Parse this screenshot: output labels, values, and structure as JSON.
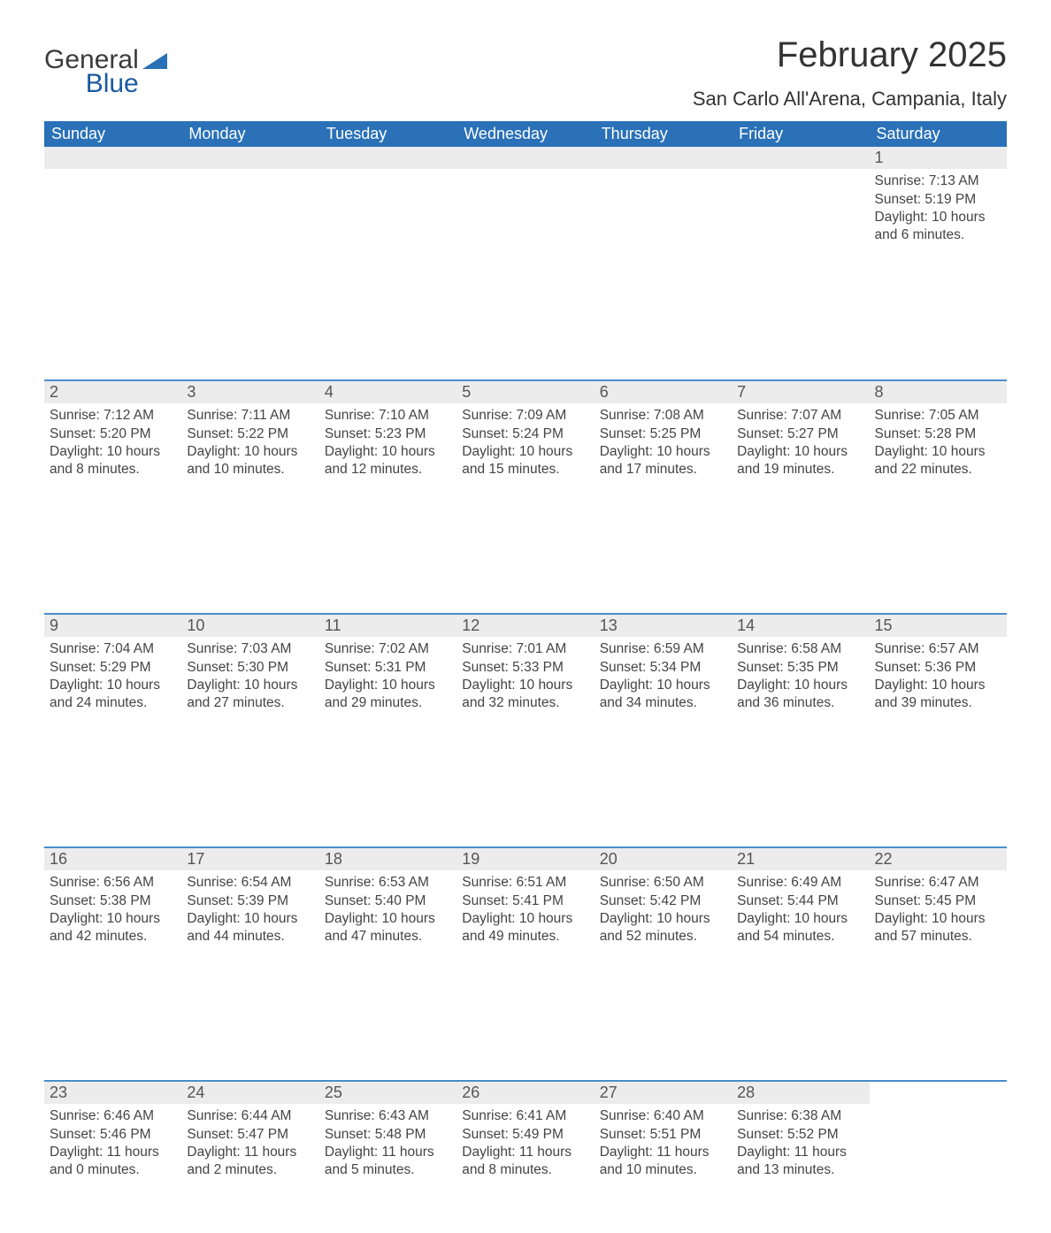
{
  "logo": {
    "word1": "General",
    "word2": "Blue",
    "flag_color": "#2a71b8"
  },
  "title": "February 2025",
  "location": "San Carlo All'Arena, Campania, Italy",
  "colors": {
    "header_bg": "#2a71b8",
    "header_text": "#ffffff",
    "row_separator": "#4a8dcc",
    "daynum_bg": "#ececec",
    "text": "#3a3a3a",
    "page_bg": "#ffffff"
  },
  "weekdays": [
    "Sunday",
    "Monday",
    "Tuesday",
    "Wednesday",
    "Thursday",
    "Friday",
    "Saturday"
  ],
  "first_weekday_index": 6,
  "days": [
    {
      "n": 1,
      "sunrise": "7:13 AM",
      "sunset": "5:19 PM",
      "daylight": "10 hours and 6 minutes."
    },
    {
      "n": 2,
      "sunrise": "7:12 AM",
      "sunset": "5:20 PM",
      "daylight": "10 hours and 8 minutes."
    },
    {
      "n": 3,
      "sunrise": "7:11 AM",
      "sunset": "5:22 PM",
      "daylight": "10 hours and 10 minutes."
    },
    {
      "n": 4,
      "sunrise": "7:10 AM",
      "sunset": "5:23 PM",
      "daylight": "10 hours and 12 minutes."
    },
    {
      "n": 5,
      "sunrise": "7:09 AM",
      "sunset": "5:24 PM",
      "daylight": "10 hours and 15 minutes."
    },
    {
      "n": 6,
      "sunrise": "7:08 AM",
      "sunset": "5:25 PM",
      "daylight": "10 hours and 17 minutes."
    },
    {
      "n": 7,
      "sunrise": "7:07 AM",
      "sunset": "5:27 PM",
      "daylight": "10 hours and 19 minutes."
    },
    {
      "n": 8,
      "sunrise": "7:05 AM",
      "sunset": "5:28 PM",
      "daylight": "10 hours and 22 minutes."
    },
    {
      "n": 9,
      "sunrise": "7:04 AM",
      "sunset": "5:29 PM",
      "daylight": "10 hours and 24 minutes."
    },
    {
      "n": 10,
      "sunrise": "7:03 AM",
      "sunset": "5:30 PM",
      "daylight": "10 hours and 27 minutes."
    },
    {
      "n": 11,
      "sunrise": "7:02 AM",
      "sunset": "5:31 PM",
      "daylight": "10 hours and 29 minutes."
    },
    {
      "n": 12,
      "sunrise": "7:01 AM",
      "sunset": "5:33 PM",
      "daylight": "10 hours and 32 minutes."
    },
    {
      "n": 13,
      "sunrise": "6:59 AM",
      "sunset": "5:34 PM",
      "daylight": "10 hours and 34 minutes."
    },
    {
      "n": 14,
      "sunrise": "6:58 AM",
      "sunset": "5:35 PM",
      "daylight": "10 hours and 36 minutes."
    },
    {
      "n": 15,
      "sunrise": "6:57 AM",
      "sunset": "5:36 PM",
      "daylight": "10 hours and 39 minutes."
    },
    {
      "n": 16,
      "sunrise": "6:56 AM",
      "sunset": "5:38 PM",
      "daylight": "10 hours and 42 minutes."
    },
    {
      "n": 17,
      "sunrise": "6:54 AM",
      "sunset": "5:39 PM",
      "daylight": "10 hours and 44 minutes."
    },
    {
      "n": 18,
      "sunrise": "6:53 AM",
      "sunset": "5:40 PM",
      "daylight": "10 hours and 47 minutes."
    },
    {
      "n": 19,
      "sunrise": "6:51 AM",
      "sunset": "5:41 PM",
      "daylight": "10 hours and 49 minutes."
    },
    {
      "n": 20,
      "sunrise": "6:50 AM",
      "sunset": "5:42 PM",
      "daylight": "10 hours and 52 minutes."
    },
    {
      "n": 21,
      "sunrise": "6:49 AM",
      "sunset": "5:44 PM",
      "daylight": "10 hours and 54 minutes."
    },
    {
      "n": 22,
      "sunrise": "6:47 AM",
      "sunset": "5:45 PM",
      "daylight": "10 hours and 57 minutes."
    },
    {
      "n": 23,
      "sunrise": "6:46 AM",
      "sunset": "5:46 PM",
      "daylight": "11 hours and 0 minutes."
    },
    {
      "n": 24,
      "sunrise": "6:44 AM",
      "sunset": "5:47 PM",
      "daylight": "11 hours and 2 minutes."
    },
    {
      "n": 25,
      "sunrise": "6:43 AM",
      "sunset": "5:48 PM",
      "daylight": "11 hours and 5 minutes."
    },
    {
      "n": 26,
      "sunrise": "6:41 AM",
      "sunset": "5:49 PM",
      "daylight": "11 hours and 8 minutes."
    },
    {
      "n": 27,
      "sunrise": "6:40 AM",
      "sunset": "5:51 PM",
      "daylight": "11 hours and 10 minutes."
    },
    {
      "n": 28,
      "sunrise": "6:38 AM",
      "sunset": "5:52 PM",
      "daylight": "11 hours and 13 minutes."
    }
  ],
  "labels": {
    "sunrise": "Sunrise: ",
    "sunset": "Sunset: ",
    "daylight": "Daylight: "
  }
}
